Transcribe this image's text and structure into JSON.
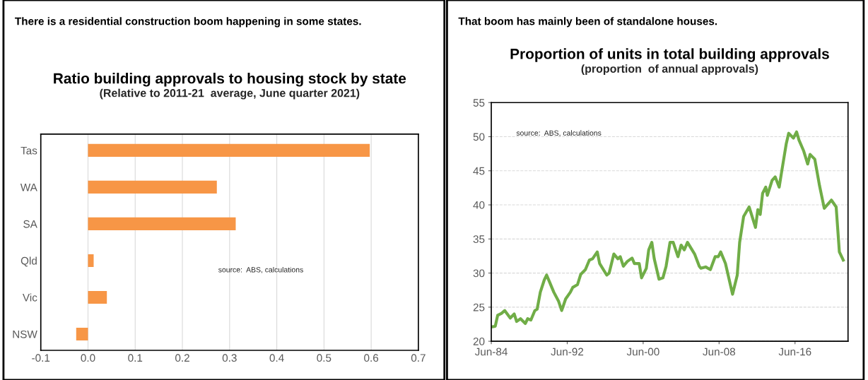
{
  "chart_data": [
    {
      "type": "bar",
      "orientation": "horizontal",
      "title": "Ratio building approvals to housing stock by state",
      "subtitle": "(Relative to 2011-21  average, June quarter 2021)",
      "annotations": [
        "There is a residential construction boom happening in some states.",
        "source:  ABS, calculations"
      ],
      "categories": [
        "Tas",
        "WA",
        "SA",
        "Qld",
        "Vic",
        "NSW"
      ],
      "values": [
        0.597,
        0.273,
        0.313,
        0.012,
        0.04,
        -0.025
      ],
      "color": "#f79646",
      "xlim": [
        -0.1,
        0.7
      ],
      "xticks": [
        -0.1,
        {
          "value": 0,
          "label": "0.0"
        },
        0.1,
        0.2,
        0.3,
        0.4,
        0.5,
        0.6,
        0.7
      ],
      "grid": "x",
      "legend": false
    },
    {
      "type": "line",
      "title": "Proportion of units in total building approvals",
      "subtitle": "(proportion  of annual approvals)",
      "annotations": [
        "That boom has mainly been of standalone houses.",
        "source:  ABS, calculations"
      ],
      "x": [
        "1984-06",
        "1984-11",
        "1985-02",
        "1985-07",
        "1985-11",
        "1986-06",
        "1986-11",
        "1987-02",
        "1987-07",
        "1988-01",
        "1988-04",
        "1988-08",
        "1989-01",
        "1989-04",
        "1989-08",
        "1990-01",
        "1990-04",
        "1990-08",
        "1991-01",
        "1991-07",
        "1991-11",
        "1992-04",
        "1992-10",
        "1993-01",
        "1993-07",
        "1993-11",
        "1994-05",
        "1994-10",
        "1995-02",
        "1995-08",
        "1995-11",
        "1996-08",
        "1996-11",
        "1997-05",
        "1997-10",
        "1998-01",
        "1998-05",
        "1998-10",
        "1999-04",
        "1999-07",
        "2000-01",
        "2000-04",
        "2000-10",
        "2001-01",
        "2001-05",
        "2001-08",
        "2002-02",
        "2002-07",
        "2002-11",
        "2003-04",
        "2003-08",
        "2004-02",
        "2004-06",
        "2004-10",
        "2005-02",
        "2005-11",
        "2006-05",
        "2006-07",
        "2007-01",
        "2007-07",
        "2008-01",
        "2008-05",
        "2008-08",
        "2009-02",
        "2009-11",
        "2010-05",
        "2010-08",
        "2011-01",
        "2011-08",
        "2012-04",
        "2012-07",
        "2012-10",
        "2013-01",
        "2013-05",
        "2013-07",
        "2014-01",
        "2014-05",
        "2014-10",
        "2015-01",
        "2015-07",
        "2015-10",
        "2016-04",
        "2016-08",
        "2016-11",
        "2017-05",
        "2017-10",
        "2018-01",
        "2018-07",
        "2019-01",
        "2019-07",
        "2020-04",
        "2020-10",
        "2021-02",
        "2021-07"
      ],
      "series": [
        {
          "color": "#70ad47",
          "values": [
            22.1,
            22.2,
            23.8,
            24.1,
            24.5,
            23.4,
            24.0,
            22.9,
            23.3,
            22.6,
            23.3,
            23.1,
            24.5,
            24.7,
            27.2,
            29.0,
            29.7,
            28.6,
            27.2,
            25.9,
            24.5,
            26.2,
            27.2,
            27.9,
            28.3,
            29.8,
            30.5,
            31.9,
            32.1,
            33.1,
            31.4,
            29.7,
            30.0,
            32.8,
            32.1,
            32.4,
            31.0,
            31.7,
            32.2,
            31.4,
            31.4,
            29.3,
            30.7,
            33.4,
            34.5,
            32.1,
            29.1,
            29.3,
            31.0,
            34.5,
            34.5,
            32.4,
            34.1,
            33.4,
            34.5,
            32.8,
            31.0,
            30.7,
            30.9,
            30.5,
            32.4,
            32.4,
            33.1,
            31.4,
            26.9,
            29.7,
            34.5,
            38.3,
            39.7,
            36.7,
            39.3,
            38.6,
            41.7,
            42.6,
            41.4,
            43.6,
            44.1,
            42.6,
            44.8,
            49.0,
            50.5,
            49.8,
            50.7,
            49.5,
            47.9,
            46.0,
            47.4,
            46.7,
            42.8,
            39.5,
            40.7,
            39.7,
            33.1,
            31.9
          ]
        }
      ],
      "xlim": [
        "1984-06",
        "2022-01"
      ],
      "xticks": [
        {
          "value": "1984-06",
          "label": "Jun-84"
        },
        {
          "value": "1992-06",
          "label": "Jun-92"
        },
        {
          "value": "2000-06",
          "label": "Jun-00"
        },
        {
          "value": "2008-06",
          "label": "Jun-08"
        },
        {
          "value": "2016-06",
          "label": "Jun-16"
        }
      ],
      "ylim": [
        20,
        55
      ],
      "yticks": [
        20,
        25,
        30,
        35,
        40,
        45,
        50,
        55
      ],
      "grid": "y",
      "legend": false,
      "marker": "none",
      "line_style": "solid"
    }
  ]
}
